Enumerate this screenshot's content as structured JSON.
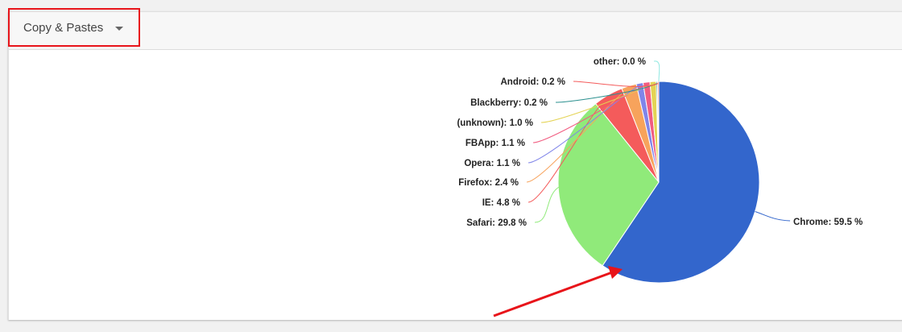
{
  "selector": {
    "label": "Copy & Pastes"
  },
  "chart_data": {
    "type": "pie",
    "title": "",
    "unit": "%",
    "slices": [
      {
        "label": "Chrome",
        "value": 59.5,
        "display": "Chrome: 59.5 %",
        "color": "#3366cc"
      },
      {
        "label": "Safari",
        "value": 29.8,
        "display": "Safari: 29.8 %",
        "color": "#90ea7a"
      },
      {
        "label": "IE",
        "value": 4.8,
        "display": "IE: 4.8 %",
        "color": "#f45b5b"
      },
      {
        "label": "Firefox",
        "value": 2.4,
        "display": "Firefox: 2.4 %",
        "color": "#f7a35c"
      },
      {
        "label": "Opera",
        "value": 1.1,
        "display": "Opera: 1.1 %",
        "color": "#8085e9"
      },
      {
        "label": "FBApp",
        "value": 1.1,
        "display": "FBApp: 1.1 %",
        "color": "#f15c80"
      },
      {
        "label": "(unknown)",
        "value": 1.0,
        "display": "(unknown): 1.0 %",
        "color": "#e4d354"
      },
      {
        "label": "Blackberry",
        "value": 0.2,
        "display": "Blackberry: 0.2 %",
        "color": "#2b908f"
      },
      {
        "label": "Android",
        "value": 0.2,
        "display": "Android: 0.2 %",
        "color": "#f45b5b"
      },
      {
        "label": "other",
        "value": 0.0,
        "display": "other: 0.0 %",
        "color": "#91e8e1"
      }
    ],
    "data_labels": "outside-with-connectors",
    "legend": "none"
  },
  "annotations": {
    "highlight_box_color": "#e8141a",
    "arrow_color": "#e8141a"
  }
}
